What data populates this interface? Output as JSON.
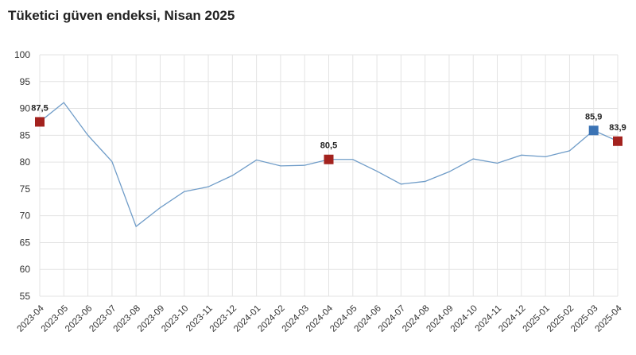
{
  "chart_data": {
    "type": "line",
    "title": "Tüketici güven endeksi, Nisan 2025",
    "xlabel": "",
    "ylabel": "",
    "ylim": [
      55,
      100
    ],
    "yticks": [
      55,
      60,
      65,
      70,
      75,
      80,
      85,
      90,
      95,
      100
    ],
    "ytick_labels": [
      "55",
      "60",
      "65",
      "70",
      "75",
      "80",
      "85",
      "90",
      "95",
      "100"
    ],
    "grid": true,
    "categories": [
      "2023-04",
      "2023-05",
      "2023-06",
      "2023-07",
      "2023-08",
      "2023-09",
      "2023-10",
      "2023-11",
      "2023-12",
      "2024-01",
      "2024-02",
      "2024-03",
      "2024-04",
      "2024-05",
      "2024-06",
      "2024-07",
      "2024-08",
      "2024-09",
      "2024-10",
      "2024-11",
      "2024-12",
      "2025-01",
      "2025-02",
      "2025-03",
      "2025-04"
    ],
    "series": [
      {
        "values": [
          87.5,
          91.1,
          85.0,
          80.1,
          68.0,
          71.5,
          74.5,
          75.4,
          77.5,
          80.4,
          79.3,
          79.4,
          80.5,
          80.5,
          78.3,
          75.9,
          76.4,
          78.2,
          80.6,
          79.8,
          81.3,
          81.0,
          82.1,
          85.9,
          83.9
        ],
        "color": "#6f9cc8"
      }
    ],
    "annotations": [
      {
        "index": 0,
        "label": "87,5",
        "color": "#a3221e"
      },
      {
        "index": 12,
        "label": "80,5",
        "color": "#a3221e"
      },
      {
        "index": 23,
        "label": "85,9",
        "color": "#3b73b4"
      },
      {
        "index": 24,
        "label": "83,9",
        "color": "#a3221e"
      }
    ]
  }
}
